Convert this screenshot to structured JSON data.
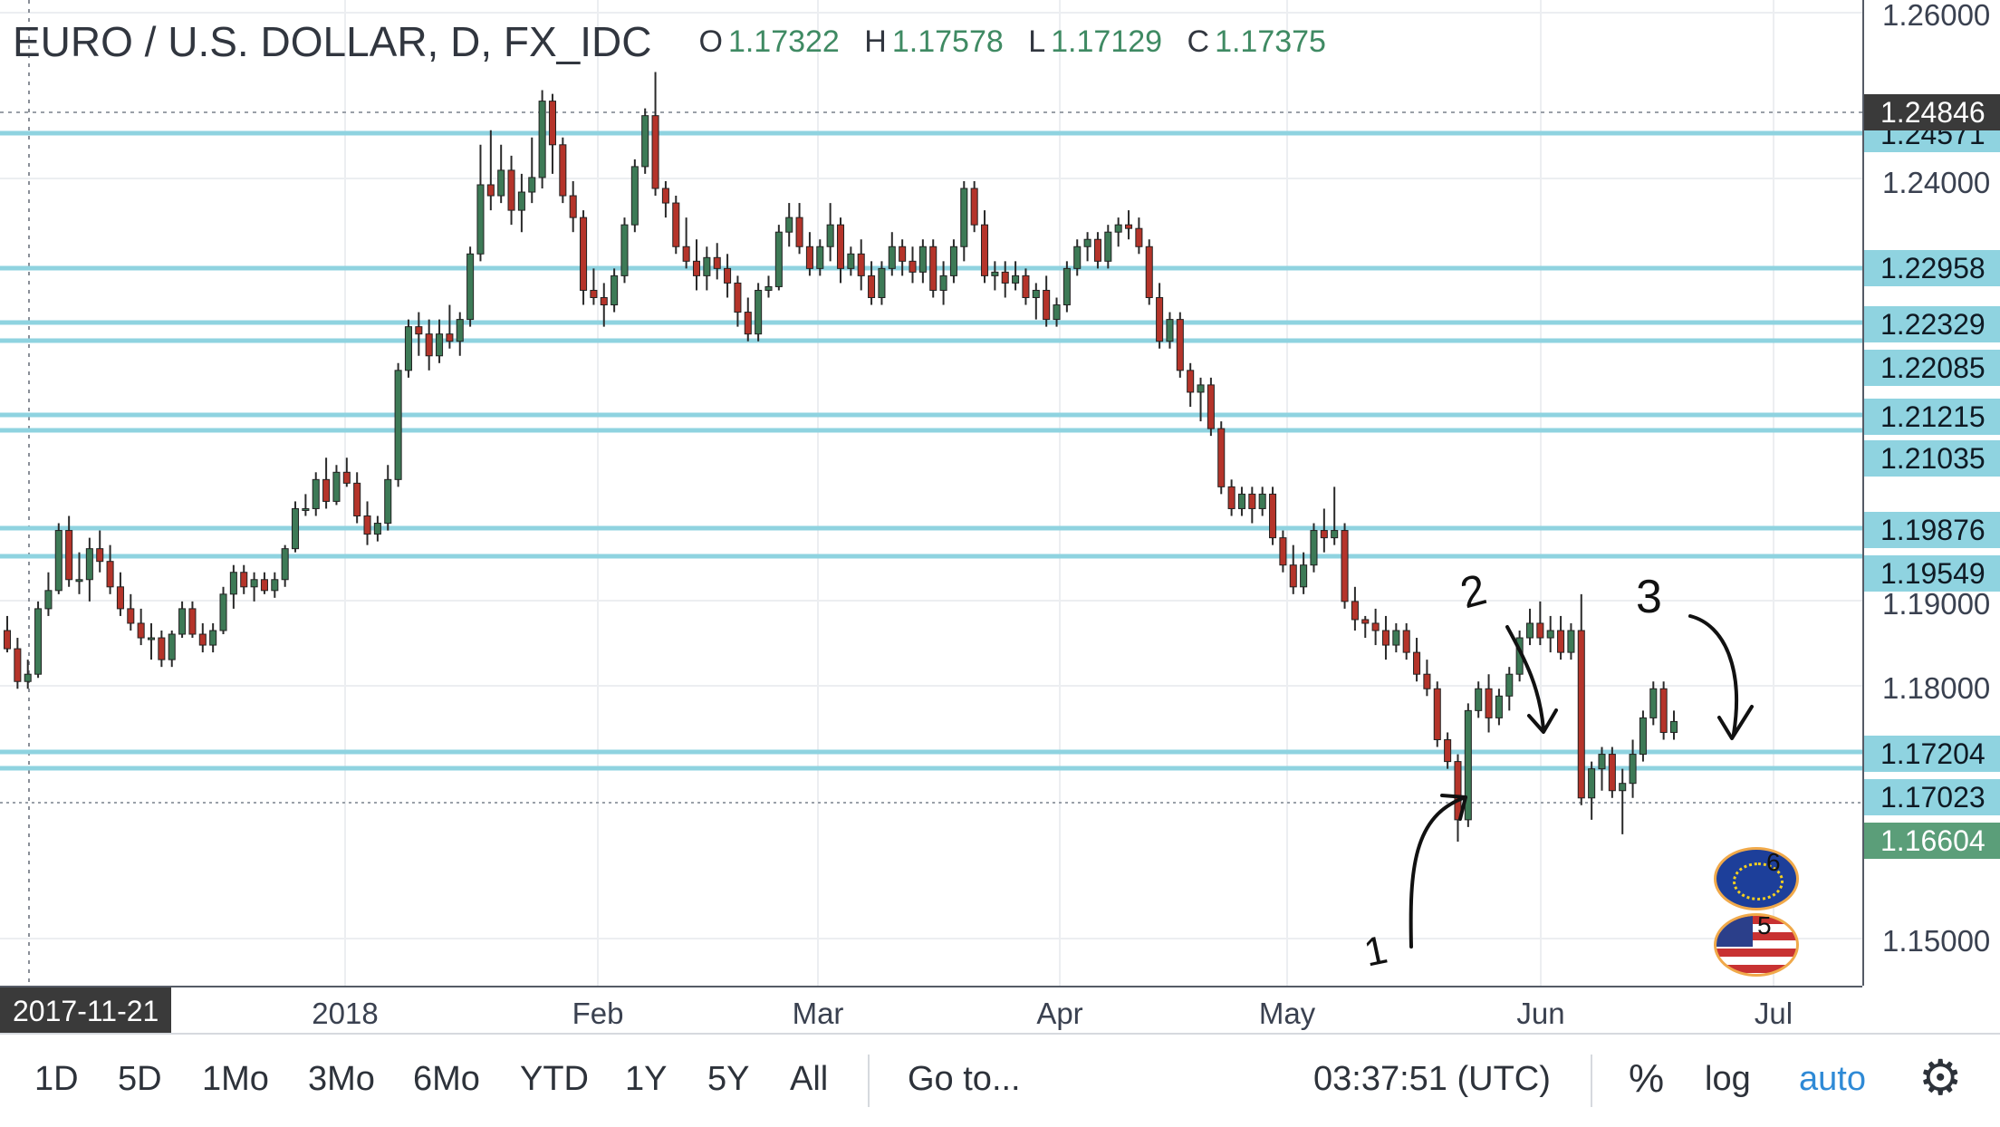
{
  "legend": {
    "symbol": "EURO / U.S. DOLLAR, D, FX_IDC",
    "open_label": "O",
    "open": "1.17322",
    "high_label": "H",
    "high": "1.17578",
    "low_label": "L",
    "low": "1.17129",
    "close_label": "C",
    "close": "1.17375"
  },
  "price_axis": {
    "ticks": [
      "1.26000",
      "1.24000",
      "1.19000",
      "1.18000",
      "1.15000"
    ],
    "horizontal_line_labels": [
      "1.24571",
      "1.22958",
      "1.22329",
      "1.22085",
      "1.21215",
      "1.21035",
      "1.19876",
      "1.19549",
      "1.17204",
      "1.17023"
    ],
    "reference_line_label": "1.24846",
    "last_price_label": "1.16604"
  },
  "time_axis": {
    "labels": [
      "2018",
      "Feb",
      "Mar",
      "Apr",
      "May",
      "Jun",
      "Jul"
    ],
    "cursor_date": "2017-11-21"
  },
  "annotations": {
    "label_1": "1",
    "label_2": "2",
    "label_3": "3"
  },
  "events": {
    "eu_count": "6",
    "us_count": "5"
  },
  "toolbar": {
    "ranges": [
      "1D",
      "5D",
      "1Mo",
      "3Mo",
      "6Mo",
      "YTD",
      "1Y",
      "5Y",
      "All"
    ],
    "goto": "Go to...",
    "clock": "03:37:51 (UTC)",
    "percent": "%",
    "log": "log",
    "auto": "auto"
  },
  "colors": {
    "up": "#3d7a56",
    "down": "#b5342a",
    "hline": "#8fd3e0",
    "auto_active": "#2f8ad6"
  },
  "chart_data": {
    "type": "candlestick",
    "y_scale": "linear",
    "candles": [
      [
        1.18,
        1.182,
        1.177,
        1.1775
      ],
      [
        1.1775,
        1.179,
        1.172,
        1.173
      ],
      [
        1.173,
        1.176,
        1.172,
        1.174
      ],
      [
        1.174,
        1.184,
        1.1735,
        1.183
      ],
      [
        1.183,
        1.188,
        1.182,
        1.1855
      ],
      [
        1.1855,
        1.194,
        1.185,
        1.193
      ],
      [
        1.193,
        1.195,
        1.186,
        1.187
      ],
      [
        1.187,
        1.19,
        1.185,
        1.187
      ],
      [
        1.187,
        1.192,
        1.184,
        1.1905
      ],
      [
        1.1905,
        1.193,
        1.188,
        1.1895
      ],
      [
        1.1895,
        1.191,
        1.185,
        1.186
      ],
      [
        1.186,
        1.188,
        1.182,
        1.183
      ],
      [
        1.183,
        1.185,
        1.18,
        1.181
      ],
      [
        1.181,
        1.183,
        1.178,
        1.179
      ],
      [
        1.179,
        1.181,
        1.176,
        1.179
      ],
      [
        1.179,
        1.18,
        1.175,
        1.176
      ],
      [
        1.176,
        1.18,
        1.175,
        1.1795
      ],
      [
        1.1795,
        1.184,
        1.179,
        1.183
      ],
      [
        1.183,
        1.184,
        1.179,
        1.1795
      ],
      [
        1.1795,
        1.181,
        1.177,
        1.178
      ],
      [
        1.178,
        1.181,
        1.177,
        1.18
      ],
      [
        1.18,
        1.186,
        1.1795,
        1.185
      ],
      [
        1.185,
        1.189,
        1.183,
        1.188
      ],
      [
        1.188,
        1.189,
        1.185,
        1.186
      ],
      [
        1.186,
        1.188,
        1.184,
        1.187
      ],
      [
        1.187,
        1.188,
        1.185,
        1.1855
      ],
      [
        1.1855,
        1.188,
        1.1845,
        1.187
      ],
      [
        1.187,
        1.191,
        1.186,
        1.1905
      ],
      [
        1.1905,
        1.197,
        1.19,
        1.196
      ],
      [
        1.196,
        1.198,
        1.195,
        1.196
      ],
      [
        1.196,
        1.201,
        1.195,
        1.2
      ],
      [
        1.2,
        1.203,
        1.196,
        1.197
      ],
      [
        1.197,
        1.202,
        1.1965,
        1.201
      ],
      [
        1.201,
        1.203,
        1.199,
        1.1995
      ],
      [
        1.1995,
        1.201,
        1.194,
        1.195
      ],
      [
        1.195,
        1.197,
        1.191,
        1.1925
      ],
      [
        1.1925,
        1.195,
        1.1915,
        1.194
      ],
      [
        1.194,
        1.202,
        1.193,
        1.2
      ],
      [
        1.2,
        1.216,
        1.199,
        1.215
      ],
      [
        1.215,
        1.222,
        1.214,
        1.221
      ],
      [
        1.221,
        1.223,
        1.217,
        1.22
      ],
      [
        1.22,
        1.222,
        1.215,
        1.217
      ],
      [
        1.217,
        1.222,
        1.216,
        1.22
      ],
      [
        1.22,
        1.224,
        1.218,
        1.219
      ],
      [
        1.219,
        1.223,
        1.217,
        1.222
      ],
      [
        1.222,
        1.232,
        1.221,
        1.231
      ],
      [
        1.231,
        1.246,
        1.23,
        1.2405
      ],
      [
        1.2405,
        1.248,
        1.237,
        1.239
      ],
      [
        1.239,
        1.246,
        1.238,
        1.2425
      ],
      [
        1.2425,
        1.2445,
        1.235,
        1.237
      ],
      [
        1.237,
        1.242,
        1.234,
        1.2395
      ],
      [
        1.2395,
        1.247,
        1.238,
        1.2415
      ],
      [
        1.2415,
        1.2535,
        1.24,
        1.252
      ],
      [
        1.252,
        1.253,
        1.242,
        1.246
      ],
      [
        1.246,
        1.247,
        1.238,
        1.239
      ],
      [
        1.239,
        1.241,
        1.234,
        1.236
      ],
      [
        1.236,
        1.237,
        1.224,
        1.226
      ],
      [
        1.226,
        1.229,
        1.224,
        1.225
      ],
      [
        1.225,
        1.227,
        1.221,
        1.224
      ],
      [
        1.224,
        1.229,
        1.223,
        1.228
      ],
      [
        1.228,
        1.236,
        1.227,
        1.235
      ],
      [
        1.235,
        1.244,
        1.234,
        1.243
      ],
      [
        1.243,
        1.251,
        1.242,
        1.25
      ],
      [
        1.25,
        1.256,
        1.239,
        1.24
      ],
      [
        1.24,
        1.241,
        1.236,
        1.238
      ],
      [
        1.238,
        1.239,
        1.231,
        1.232
      ],
      [
        1.232,
        1.236,
        1.229,
        1.23
      ],
      [
        1.23,
        1.233,
        1.226,
        1.228
      ],
      [
        1.228,
        1.232,
        1.226,
        1.2305
      ],
      [
        1.2305,
        1.2325,
        1.2275,
        1.229
      ],
      [
        1.229,
        1.231,
        1.225,
        1.227
      ],
      [
        1.227,
        1.228,
        1.221,
        1.223
      ],
      [
        1.223,
        1.225,
        1.219,
        1.22
      ],
      [
        1.22,
        1.227,
        1.219,
        1.226
      ],
      [
        1.226,
        1.228,
        1.225,
        1.2265
      ],
      [
        1.2265,
        1.235,
        1.226,
        1.234
      ],
      [
        1.234,
        1.238,
        1.232,
        1.236
      ],
      [
        1.236,
        1.238,
        1.231,
        1.232
      ],
      [
        1.232,
        1.234,
        1.228,
        1.229
      ],
      [
        1.229,
        1.233,
        1.228,
        1.232
      ],
      [
        1.232,
        1.238,
        1.23,
        1.235
      ],
      [
        1.235,
        1.236,
        1.227,
        1.229
      ],
      [
        1.229,
        1.232,
        1.228,
        1.231
      ],
      [
        1.231,
        1.233,
        1.226,
        1.228
      ],
      [
        1.228,
        1.23,
        1.224,
        1.225
      ],
      [
        1.225,
        1.23,
        1.224,
        1.229
      ],
      [
        1.229,
        1.234,
        1.228,
        1.232
      ],
      [
        1.232,
        1.233,
        1.228,
        1.23
      ],
      [
        1.23,
        1.232,
        1.227,
        1.2285
      ],
      [
        1.2285,
        1.233,
        1.227,
        1.232
      ],
      [
        1.232,
        1.233,
        1.225,
        1.226
      ],
      [
        1.226,
        1.23,
        1.224,
        1.228
      ],
      [
        1.228,
        1.233,
        1.227,
        1.232
      ],
      [
        1.232,
        1.241,
        1.23,
        1.24
      ],
      [
        1.24,
        1.241,
        1.234,
        1.235
      ],
      [
        1.235,
        1.237,
        1.227,
        1.228
      ],
      [
        1.228,
        1.23,
        1.226,
        1.2285
      ],
      [
        1.2285,
        1.23,
        1.225,
        1.227
      ],
      [
        1.227,
        1.23,
        1.226,
        1.228
      ],
      [
        1.228,
        1.229,
        1.224,
        1.225
      ],
      [
        1.225,
        1.227,
        1.222,
        1.226
      ],
      [
        1.226,
        1.228,
        1.221,
        1.222
      ],
      [
        1.222,
        1.225,
        1.221,
        1.224
      ],
      [
        1.224,
        1.23,
        1.223,
        1.229
      ],
      [
        1.229,
        1.233,
        1.228,
        1.232
      ],
      [
        1.232,
        1.234,
        1.23,
        1.233
      ],
      [
        1.233,
        1.234,
        1.229,
        1.23
      ],
      [
        1.23,
        1.235,
        1.229,
        1.234
      ],
      [
        1.234,
        1.236,
        1.232,
        1.235
      ],
      [
        1.235,
        1.237,
        1.233,
        1.2345
      ],
      [
        1.2345,
        1.236,
        1.231,
        1.232
      ],
      [
        1.232,
        1.233,
        1.224,
        1.225
      ],
      [
        1.225,
        1.227,
        1.218,
        1.219
      ],
      [
        1.219,
        1.223,
        1.218,
        1.222
      ],
      [
        1.222,
        1.223,
        1.214,
        1.215
      ],
      [
        1.215,
        1.216,
        1.21,
        1.212
      ],
      [
        1.212,
        1.214,
        1.208,
        1.213
      ],
      [
        1.213,
        1.214,
        1.206,
        1.207
      ],
      [
        1.207,
        1.208,
        1.198,
        1.199
      ],
      [
        1.199,
        1.2,
        1.195,
        1.196
      ],
      [
        1.196,
        1.199,
        1.195,
        1.198
      ],
      [
        1.198,
        1.199,
        1.194,
        1.196
      ],
      [
        1.196,
        1.199,
        1.195,
        1.198
      ],
      [
        1.198,
        1.199,
        1.191,
        1.192
      ],
      [
        1.192,
        1.193,
        1.188,
        1.189
      ],
      [
        1.189,
        1.191,
        1.185,
        1.186
      ],
      [
        1.186,
        1.19,
        1.185,
        1.189
      ],
      [
        1.189,
        1.194,
        1.188,
        1.193
      ],
      [
        1.193,
        1.196,
        1.19,
        1.192
      ],
      [
        1.192,
        1.199,
        1.191,
        1.193
      ],
      [
        1.193,
        1.194,
        1.183,
        1.184
      ],
      [
        1.184,
        1.186,
        1.18,
        1.1815
      ],
      [
        1.1815,
        1.182,
        1.179,
        1.181
      ],
      [
        1.181,
        1.183,
        1.178,
        1.18
      ],
      [
        1.18,
        1.182,
        1.176,
        1.178
      ],
      [
        1.178,
        1.181,
        1.177,
        1.18
      ],
      [
        1.18,
        1.181,
        1.176,
        1.177
      ],
      [
        1.177,
        1.179,
        1.173,
        1.174
      ],
      [
        1.174,
        1.176,
        1.171,
        1.172
      ],
      [
        1.172,
        1.173,
        1.164,
        1.165
      ],
      [
        1.165,
        1.166,
        1.161,
        1.162
      ],
      [
        1.162,
        1.163,
        1.151,
        1.154
      ],
      [
        1.154,
        1.17,
        1.153,
        1.169
      ],
      [
        1.169,
        1.173,
        1.168,
        1.172
      ],
      [
        1.172,
        1.174,
        1.166,
        1.168
      ],
      [
        1.168,
        1.172,
        1.167,
        1.171
      ],
      [
        1.171,
        1.175,
        1.169,
        1.174
      ],
      [
        1.174,
        1.18,
        1.173,
        1.179
      ],
      [
        1.179,
        1.183,
        1.178,
        1.181
      ],
      [
        1.181,
        1.184,
        1.178,
        1.179
      ],
      [
        1.179,
        1.182,
        1.177,
        1.18
      ],
      [
        1.18,
        1.182,
        1.176,
        1.177
      ],
      [
        1.177,
        1.181,
        1.176,
        1.18
      ],
      [
        1.18,
        1.185,
        1.156,
        1.157
      ],
      [
        1.157,
        1.162,
        1.154,
        1.161
      ],
      [
        1.161,
        1.164,
        1.158,
        1.163
      ],
      [
        1.163,
        1.164,
        1.157,
        1.158
      ],
      [
        1.158,
        1.161,
        1.152,
        1.159
      ],
      [
        1.159,
        1.165,
        1.157,
        1.163
      ],
      [
        1.163,
        1.169,
        1.162,
        1.168
      ],
      [
        1.168,
        1.173,
        1.167,
        1.172
      ],
      [
        1.172,
        1.173,
        1.165,
        1.166
      ],
      [
        1.166,
        1.169,
        1.165,
        1.1675
      ]
    ]
  }
}
